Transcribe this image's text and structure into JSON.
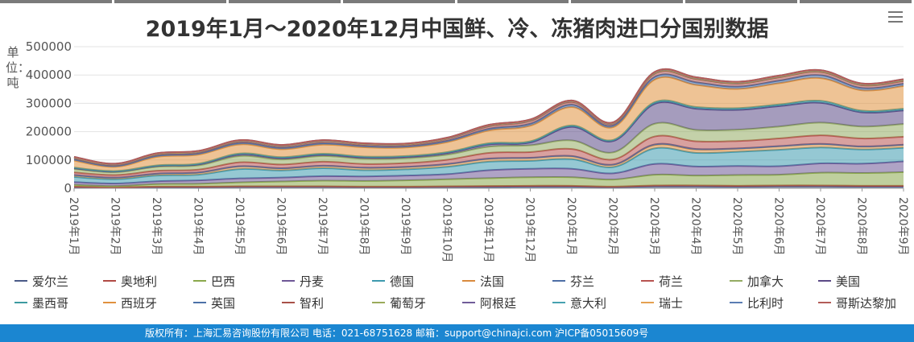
{
  "title": "2019年1月～2020年12月中国鲜、冷、冻猪肉进口分国别数据",
  "y_unit_label": "单位：吨",
  "menu_icon": "hamburger-menu-icon",
  "footer": {
    "text": "版权所有：上海汇易咨询股份有限公司 电话：021-68751628 邮箱：support@chinajci.com 沪ICP备05015609号"
  },
  "chart_data": {
    "type": "area",
    "stacked": true,
    "title": "2019年1月～2020年12月中国鲜、冷、冻猪肉进口分国别数据",
    "ylabel": "单位：吨",
    "ylim": [
      0,
      500000
    ],
    "yticks": [
      "0",
      "100000",
      "200000",
      "300000",
      "400000",
      "500000"
    ],
    "grid": true,
    "legend_position": "bottom",
    "categories": [
      "2019年1月",
      "2019年2月",
      "2019年3月",
      "2019年4月",
      "2019年5月",
      "2019年6月",
      "2019年7月",
      "2019年8月",
      "2019年9月",
      "2019年10月",
      "2019年11月",
      "2019年12月",
      "2020年1月",
      "2020年2月",
      "2020年3月",
      "2020年4月",
      "2020年5月",
      "2020年6月",
      "2020年7月",
      "2020年8月",
      "2020年9月"
    ],
    "series": [
      {
        "name": "爱尔兰",
        "color": "#4a5a87",
        "values": [
          4000,
          3000,
          4000,
          4000,
          5000,
          5000,
          5000,
          4000,
          4000,
          5000,
          5000,
          6000,
          6000,
          4000,
          7000,
          7000,
          6000,
          7000,
          7000,
          6000,
          6000
        ]
      },
      {
        "name": "奥地利",
        "color": "#b04a44",
        "values": [
          2000,
          1000,
          2000,
          2000,
          2000,
          2000,
          2000,
          2000,
          2000,
          2000,
          3000,
          3000,
          3000,
          2000,
          3000,
          3000,
          3000,
          3000,
          3000,
          3000,
          3000
        ]
      },
      {
        "name": "巴西",
        "color": "#8aa84c",
        "values": [
          6000,
          4000,
          9000,
          10000,
          14000,
          17000,
          20000,
          20000,
          22000,
          25000,
          28000,
          30000,
          30000,
          25000,
          38000,
          35000,
          38000,
          38000,
          45000,
          45000,
          48000
        ]
      },
      {
        "name": "丹麦",
        "color": "#6e5796",
        "values": [
          10000,
          9000,
          10000,
          12000,
          14000,
          14000,
          16000,
          16000,
          17000,
          18000,
          28000,
          30000,
          30000,
          22000,
          38000,
          32000,
          32000,
          30000,
          33000,
          33000,
          38000
        ]
      },
      {
        "name": "德国",
        "color": "#3e9aae",
        "values": [
          18000,
          15000,
          20000,
          20000,
          33000,
          25000,
          28000,
          22000,
          22000,
          26000,
          30000,
          28000,
          34000,
          22000,
          55000,
          48000,
          50000,
          58000,
          56000,
          50000,
          48000
        ]
      },
      {
        "name": "法国",
        "color": "#d98a3e",
        "values": [
          6000,
          5000,
          6000,
          7000,
          9000,
          7000,
          8000,
          8000,
          8000,
          9000,
          10000,
          10000,
          10000,
          8000,
          12000,
          12000,
          11000,
          12000,
          12000,
          10000,
          10000
        ]
      },
      {
        "name": "芬兰",
        "color": "#4d6ea5",
        "values": [
          1000,
          1000,
          1000,
          1000,
          1000,
          1000,
          1000,
          1000,
          1000,
          1000,
          1000,
          1000,
          1000,
          1000,
          2000,
          2000,
          1000,
          1000,
          1000,
          1000,
          1000
        ]
      },
      {
        "name": "荷兰",
        "color": "#b85450",
        "values": [
          9000,
          9000,
          10000,
          10000,
          14000,
          13000,
          14000,
          13000,
          13000,
          15000,
          20000,
          20000,
          25000,
          18000,
          28000,
          27000,
          26000,
          27000,
          30000,
          28000,
          28000
        ]
      },
      {
        "name": "加拿大",
        "color": "#94ab63",
        "values": [
          12000,
          10000,
          14000,
          15000,
          22000,
          18000,
          20000,
          18000,
          17000,
          18000,
          22000,
          24000,
          30000,
          25000,
          45000,
          40000,
          40000,
          42000,
          45000,
          42000,
          45000
        ]
      },
      {
        "name": "美国",
        "color": "#5b4a86",
        "values": [
          3000,
          2000,
          3000,
          4000,
          6000,
          5000,
          5000,
          5000,
          5000,
          6000,
          8000,
          10000,
          48000,
          40000,
          70000,
          75000,
          70000,
          72000,
          70000,
          50000,
          48000
        ]
      },
      {
        "name": "墨西哥",
        "color": "#3c9aa0",
        "values": [
          2000,
          2000,
          2000,
          2000,
          3000,
          3000,
          3000,
          3000,
          3000,
          3000,
          4000,
          4000,
          5000,
          4000,
          6000,
          6000,
          6000,
          6000,
          7000,
          6000,
          6000
        ]
      },
      {
        "name": "西班牙",
        "color": "#e0913e",
        "values": [
          25000,
          15000,
          30000,
          32000,
          32000,
          28000,
          32000,
          33000,
          30000,
          35000,
          45000,
          55000,
          65000,
          45000,
          80000,
          78000,
          68000,
          75000,
          80000,
          72000,
          80000
        ]
      },
      {
        "name": "英国",
        "color": "#4c71a8",
        "values": [
          4000,
          3000,
          4000,
          4000,
          5000,
          5000,
          5000,
          4000,
          4000,
          5000,
          6000,
          7000,
          8000,
          6000,
          9000,
          9000,
          8000,
          9000,
          10000,
          8000,
          8000
        ]
      },
      {
        "name": "智利",
        "color": "#a85048",
        "values": [
          5000,
          4000,
          5000,
          5000,
          6000,
          6000,
          7000,
          6000,
          6000,
          7000,
          9000,
          10000,
          10000,
          7000,
          12000,
          12000,
          11000,
          12000,
          12000,
          10000,
          10000
        ]
      },
      {
        "name": "葡萄牙",
        "color": "#9aaa5a",
        "values": [
          1000,
          1000,
          1000,
          1000,
          1000,
          1000,
          1000,
          1000,
          1000,
          1000,
          2000,
          2000,
          2000,
          1000,
          2000,
          2000,
          2000,
          2000,
          2000,
          2000,
          2000
        ]
      },
      {
        "name": "阿根廷",
        "color": "#705c99",
        "values": [
          1000,
          1000,
          1000,
          1000,
          1000,
          1000,
          1000,
          1000,
          1000,
          1000,
          1000,
          1000,
          1000,
          1000,
          2000,
          2000,
          2000,
          2000,
          2000,
          2000,
          2000
        ]
      },
      {
        "name": "意大利",
        "color": "#46a1b0",
        "values": [
          1000,
          1000,
          1000,
          1000,
          1000,
          1000,
          1000,
          1000,
          1000,
          1000,
          1000,
          1000,
          1000,
          1000,
          1000,
          1000,
          1000,
          1000,
          1000,
          1000,
          1000
        ]
      },
      {
        "name": "瑞士",
        "color": "#e5a050",
        "values": [
          0,
          0,
          0,
          0,
          0,
          0,
          0,
          0,
          0,
          0,
          0,
          0,
          0,
          0,
          0,
          0,
          0,
          0,
          0,
          0,
          0
        ]
      },
      {
        "name": "比利时",
        "color": "#5a7db3",
        "values": [
          1000,
          1000,
          1000,
          1000,
          1000,
          1000,
          1000,
          1000,
          1000,
          1000,
          1000,
          1000,
          1000,
          1000,
          1000,
          1000,
          1000,
          1000,
          1000,
          1000,
          1000
        ]
      },
      {
        "name": "哥斯达黎加",
        "color": "#b35c58",
        "values": [
          0,
          0,
          0,
          0,
          0,
          0,
          0,
          0,
          0,
          0,
          0,
          0,
          0,
          0,
          0,
          0,
          0,
          0,
          0,
          0,
          0
        ]
      }
    ]
  }
}
